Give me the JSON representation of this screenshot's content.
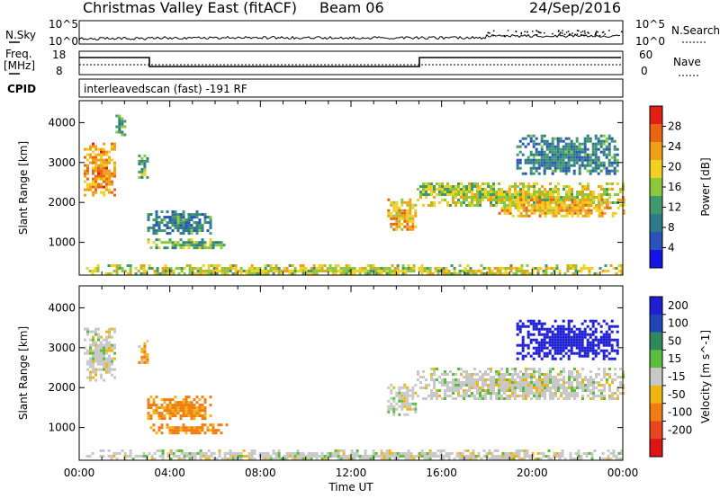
{
  "header": {
    "title": "Christmas Valley East (fitACF)",
    "beam": "Beam 06",
    "date": "24/Sep/2016"
  },
  "strips": {
    "nsky_label": "N.Sky",
    "nsky_ticks": [
      "10^5",
      "10^0"
    ],
    "nsearch_label": "N.Search",
    "nsearch_ticks": [
      "10^5",
      "10^0"
    ],
    "freq_label": "Freq.",
    "freq_unit": "[MHz]",
    "freq_ticks": [
      "18",
      "8"
    ],
    "nave_label": "Nave",
    "nave_ticks": [
      "60",
      "0"
    ],
    "cpid_label": "CPID",
    "cpid_text": "interleavedscan (fast) -191 RF"
  },
  "colors": {
    "power_scale": [
      "#1414e6",
      "#2a52b8",
      "#2e7a8a",
      "#3e9a6a",
      "#8cc83c",
      "#f0d020",
      "#f0a018",
      "#ea6414",
      "#e02012"
    ],
    "velocity_scale": [
      "#1e1ed2",
      "#1e46b4",
      "#2e8a5e",
      "#5abe3c",
      "#c8c8c8",
      "#f0b414",
      "#f07d14",
      "#e8461e",
      "#dc1414"
    ]
  },
  "chart_data": [
    {
      "type": "heatmap",
      "panel": "power",
      "ylabel": "Slant Range [km]",
      "ylim": [
        180,
        4550
      ],
      "y_ticks": [
        "1000",
        "2000",
        "3000",
        "4000"
      ],
      "xlim_hours": [
        0,
        24
      ],
      "colorbar_label": "Power [dB]",
      "colorbar_ticks": [
        "4",
        "8",
        "12",
        "16",
        "20",
        "24",
        "28"
      ],
      "colorbar_range": [
        0,
        32
      ],
      "echo_regions": [
        {
          "t": [
            0.2,
            1.6
          ],
          "r": [
            2200,
            3500
          ],
          "level": 24
        },
        {
          "t": [
            1.6,
            2.0
          ],
          "r": [
            3700,
            4200
          ],
          "level": 12
        },
        {
          "t": [
            2.6,
            3.0
          ],
          "r": [
            2600,
            3200
          ],
          "level": 14
        },
        {
          "t": [
            3.0,
            5.8
          ],
          "r": [
            1200,
            1800
          ],
          "level": 10
        },
        {
          "t": [
            3.0,
            6.5
          ],
          "r": [
            850,
            1100
          ],
          "level": 14
        },
        {
          "t": [
            0.3,
            24
          ],
          "r": [
            200,
            450
          ],
          "level": 18
        },
        {
          "t": [
            13.6,
            14.9
          ],
          "r": [
            1300,
            2100
          ],
          "level": 22
        },
        {
          "t": [
            14.9,
            24
          ],
          "r": [
            1900,
            2500
          ],
          "level": 18
        },
        {
          "t": [
            14.9,
            18.5
          ],
          "r": [
            2200,
            2500
          ],
          "level": 16
        },
        {
          "t": [
            19.3,
            23.8
          ],
          "r": [
            2700,
            3700
          ],
          "level": 10
        },
        {
          "t": [
            18.5,
            24
          ],
          "r": [
            1650,
            2100
          ],
          "level": 22
        }
      ]
    },
    {
      "type": "heatmap",
      "panel": "velocity",
      "ylabel": "Slant Range [km]",
      "ylim": [
        180,
        4550
      ],
      "y_ticks": [
        "1000",
        "2000",
        "3000",
        "4000"
      ],
      "xlim_hours": [
        0,
        24
      ],
      "xlabel": "Time UT",
      "x_ticks": [
        "00:00",
        "04:00",
        "08:00",
        "12:00",
        "16:00",
        "20:00",
        "00:00"
      ],
      "colorbar_label": "Velocity [m s^-1]",
      "colorbar_ticks": [
        "200",
        "100",
        "50",
        "15",
        "-15",
        "-50",
        "-100",
        "-200"
      ],
      "colorbar_range": [
        -250,
        250
      ],
      "echo_regions": [
        {
          "t": [
            0.2,
            1.6
          ],
          "r": [
            2200,
            3500
          ],
          "v": 0
        },
        {
          "t": [
            2.6,
            3.0
          ],
          "r": [
            2600,
            3200
          ],
          "v": -30
        },
        {
          "t": [
            3.0,
            5.8
          ],
          "r": [
            1200,
            1800
          ],
          "v": -40
        },
        {
          "t": [
            3.0,
            6.5
          ],
          "r": [
            850,
            1100
          ],
          "v": -40
        },
        {
          "t": [
            0.3,
            24
          ],
          "r": [
            200,
            450
          ],
          "v": 0
        },
        {
          "t": [
            13.6,
            14.9
          ],
          "r": [
            1300,
            2100
          ],
          "v": 0
        },
        {
          "t": [
            14.9,
            24
          ],
          "r": [
            1700,
            2500
          ],
          "v": 0
        },
        {
          "t": [
            19.3,
            23.8
          ],
          "r": [
            2700,
            3700
          ],
          "v": 200
        }
      ]
    }
  ]
}
